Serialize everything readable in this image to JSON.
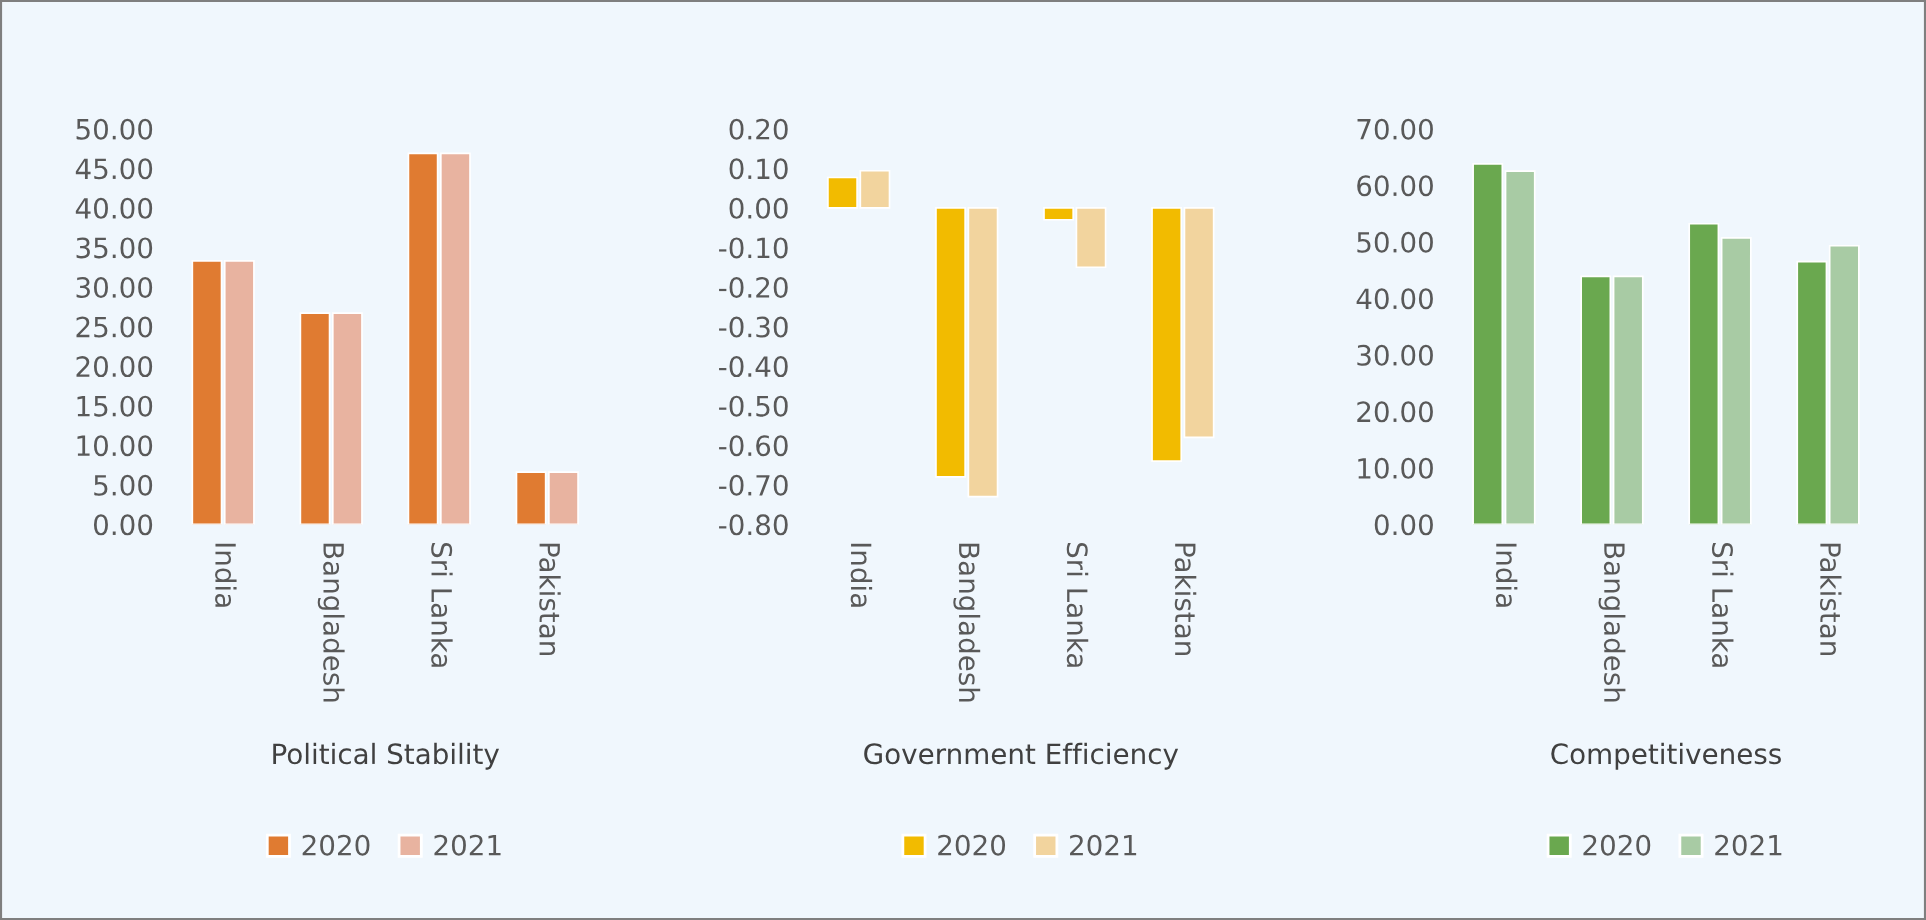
{
  "chart_data": [
    {
      "type": "bar",
      "xlabel": "Political Stability",
      "categories": [
        "India",
        "Bangladesh",
        "Sri Lanka",
        "Pakistan"
      ],
      "series": [
        {
          "name": "2020",
          "color": "#e07b31",
          "values": [
            33.3,
            26.7,
            46.9,
            6.6
          ]
        },
        {
          "name": "2021",
          "color": "#e8b3a0",
          "values": [
            33.3,
            26.7,
            46.9,
            6.6
          ]
        }
      ],
      "ylim": [
        0,
        50
      ],
      "yticks": [
        {
          "value": 0,
          "label": "0.00"
        },
        {
          "value": 5,
          "label": "5.00"
        },
        {
          "value": 10,
          "label": "10.00"
        },
        {
          "value": 15,
          "label": "15.00"
        },
        {
          "value": 20,
          "label": "20.00"
        },
        {
          "value": 25,
          "label": "25.00"
        },
        {
          "value": 30,
          "label": "30.00"
        },
        {
          "value": 35,
          "label": "35.00"
        },
        {
          "value": 40,
          "label": "40.00"
        },
        {
          "value": 45,
          "label": "45.00"
        },
        {
          "value": 50,
          "label": "50.00"
        }
      ],
      "grid": false,
      "legend": "bottom"
    },
    {
      "type": "bar",
      "xlabel": "Government Efficiency",
      "categories": [
        "India",
        "Bangladesh",
        "Sri Lanka",
        "Pakistan"
      ],
      "series": [
        {
          "name": "2020",
          "color": "#f2bb00",
          "values": [
            0.077,
            -0.68,
            -0.03,
            -0.64
          ]
        },
        {
          "name": "2021",
          "color": "#f2d49e",
          "values": [
            0.094,
            -0.73,
            -0.15,
            -0.58
          ]
        }
      ],
      "ylim": [
        -0.8,
        0.2
      ],
      "yticks": [
        {
          "value": -0.8,
          "label": "-0.80"
        },
        {
          "value": -0.7,
          "label": "-0.70"
        },
        {
          "value": -0.6,
          "label": "-0.60"
        },
        {
          "value": -0.5,
          "label": "-0.50"
        },
        {
          "value": -0.4,
          "label": "-0.40"
        },
        {
          "value": -0.3,
          "label": "-0.30"
        },
        {
          "value": -0.2,
          "label": "-0.20"
        },
        {
          "value": -0.1,
          "label": "-0.10"
        },
        {
          "value": 0,
          "label": "0.00"
        },
        {
          "value": 0.1,
          "label": "0.10"
        },
        {
          "value": 0.2,
          "label": "0.20"
        }
      ],
      "grid": false,
      "legend": "bottom"
    },
    {
      "type": "bar",
      "xlabel": "Competitiveness",
      "categories": [
        "India",
        "Bangladesh",
        "Sri Lanka",
        "Pakistan"
      ],
      "series": [
        {
          "name": "2020",
          "color": "#6aa84f",
          "values": [
            63.8,
            43.9,
            53.2,
            46.5
          ]
        },
        {
          "name": "2021",
          "color": "#a8cba4",
          "values": [
            62.5,
            43.9,
            50.7,
            49.3
          ]
        }
      ],
      "ylim": [
        0,
        70
      ],
      "yticks": [
        {
          "value": 0,
          "label": "0.00"
        },
        {
          "value": 10,
          "label": "10.00"
        },
        {
          "value": 20,
          "label": "20.00"
        },
        {
          "value": 30,
          "label": "30.00"
        },
        {
          "value": 40,
          "label": "40.00"
        },
        {
          "value": 50,
          "label": "50.00"
        },
        {
          "value": 60,
          "label": "60.00"
        },
        {
          "value": 70,
          "label": "70.00"
        }
      ],
      "grid": false,
      "legend": "bottom"
    }
  ]
}
